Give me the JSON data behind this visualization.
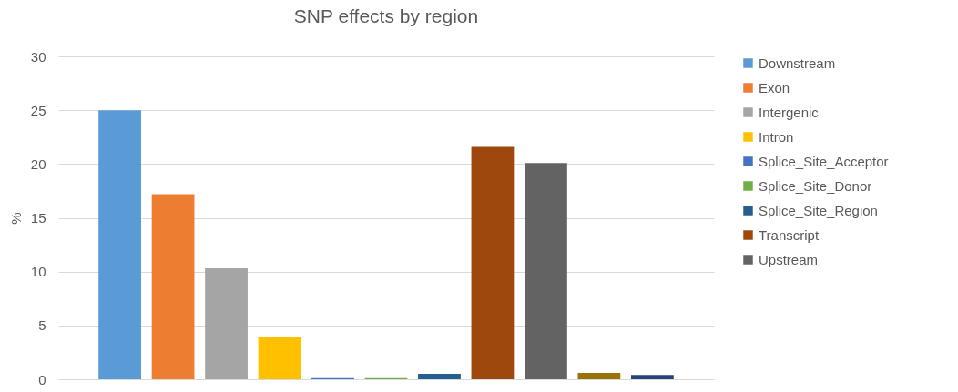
{
  "chart_data": {
    "type": "bar",
    "title": "SNP effects by region",
    "ylabel": "%",
    "categories": [
      null
    ],
    "series": [
      {
        "name": "Downstream",
        "color": "#5b9bd5",
        "values": [
          25.0
        ]
      },
      {
        "name": "Exon",
        "color": "#ed7d31",
        "values": [
          17.2
        ]
      },
      {
        "name": "Intergenic",
        "color": "#a5a5a5",
        "values": [
          10.3
        ]
      },
      {
        "name": "Intron",
        "color": "#ffc000",
        "values": [
          3.9
        ]
      },
      {
        "name": "Splice_Site_Acceptor",
        "color": "#4472c4",
        "values": [
          0.1
        ]
      },
      {
        "name": "Splice_Site_Donor",
        "color": "#70ad47",
        "values": [
          0.1
        ]
      },
      {
        "name": "Splice_Site_Region",
        "color": "#255e91",
        "values": [
          0.5
        ]
      },
      {
        "name": "Transcript",
        "color": "#9e480e",
        "values": [
          21.6
        ]
      },
      {
        "name": "Upstream",
        "color": "#636363",
        "values": [
          20.1
        ]
      },
      {
        "color": "#997300",
        "values": [
          0.6
        ]
      },
      {
        "color": "#264478",
        "values": [
          0.4
        ]
      }
    ],
    "ylim": [
      0,
      30
    ],
    "yticks": [
      0,
      5,
      10,
      15,
      20,
      25,
      30
    ],
    "grid": "y",
    "legend": "right"
  }
}
